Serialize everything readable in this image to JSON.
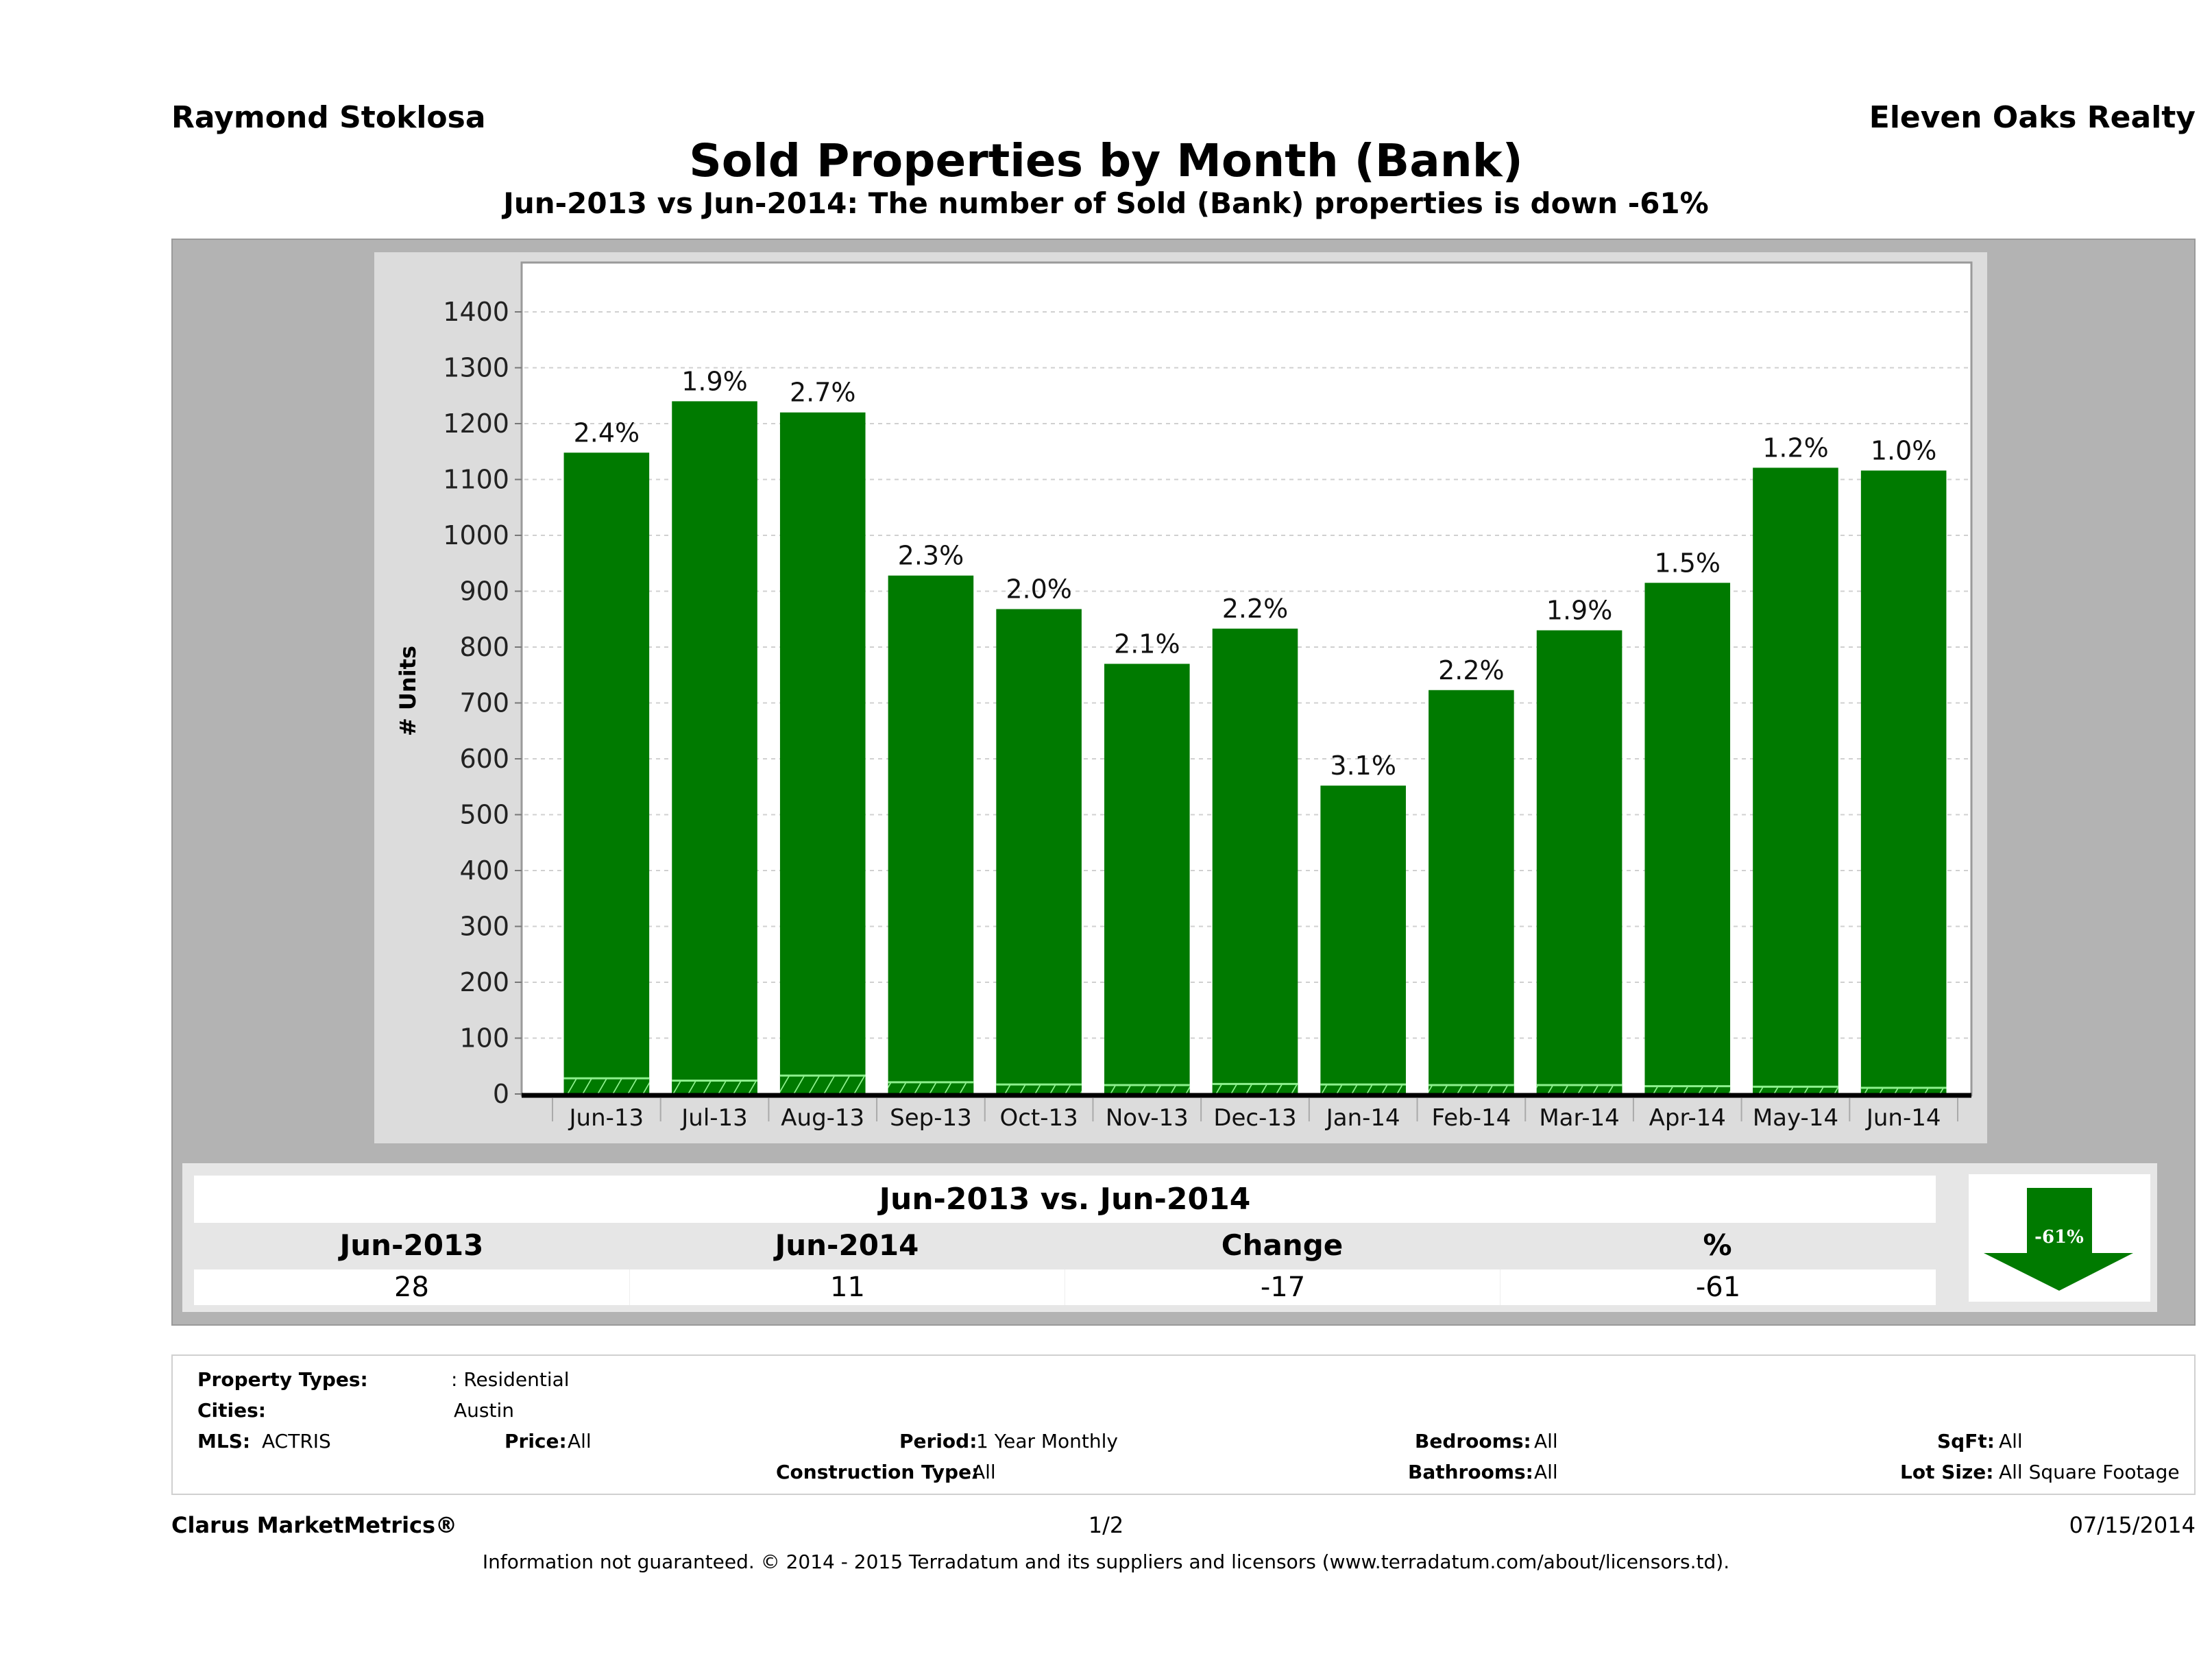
{
  "header": {
    "agent_name": "Raymond Stoklosa",
    "company_name": "Eleven Oaks Realty",
    "title": "Sold Properties by Month (Bank)",
    "subtitle": "Jun-2013 vs Jun-2014: The number of Sold (Bank)  properties is down -61%"
  },
  "colors": {
    "bar_fill": "#007a00",
    "hatch_line": "#8ef08e",
    "frame_gray": "#b3b3b3",
    "panel_gray": "#dcdcdc"
  },
  "chart_data": {
    "type": "bar",
    "title": "Sold Properties by Month (Bank)",
    "xlabel": "",
    "ylabel": "# Units",
    "ylim": [
      0,
      1400
    ],
    "yticks": [
      0,
      100,
      200,
      300,
      400,
      500,
      600,
      700,
      800,
      900,
      1000,
      1100,
      1200,
      1300,
      1400
    ],
    "grid": true,
    "stacked": true,
    "categories": [
      "Jun-13",
      "Jul-13",
      "Aug-13",
      "Sep-13",
      "Oct-13",
      "Nov-13",
      "Dec-13",
      "Jan-14",
      "Feb-14",
      "Mar-14",
      "Apr-14",
      "May-14",
      "Jun-14"
    ],
    "series": [
      {
        "name": "Sold (Bank)",
        "pattern": "hatched",
        "values": [
          28,
          24,
          33,
          21,
          17,
          16,
          18,
          17,
          16,
          16,
          14,
          13,
          11
        ]
      },
      {
        "name": "Total Sold",
        "pattern": "solid",
        "values": [
          1148,
          1240,
          1220,
          928,
          868,
          770,
          833,
          552,
          723,
          830,
          915,
          1121,
          1116
        ]
      }
    ],
    "data_labels": [
      "2.4%",
      "1.9%",
      "2.7%",
      "2.3%",
      "2.0%",
      "2.1%",
      "2.2%",
      "3.1%",
      "2.2%",
      "1.9%",
      "1.5%",
      "1.2%",
      "1.0%"
    ]
  },
  "summary": {
    "title": "Jun-2013 vs. Jun-2014",
    "headers": [
      "Jun-2013",
      "Jun-2014",
      "Change",
      "%"
    ],
    "values": [
      "28",
      "11",
      "-17",
      "-61"
    ],
    "arrow_label": "-61%",
    "arrow_icon": "down-arrow-icon"
  },
  "filters": {
    "property_types_label": "Property Types:",
    "property_types_value": ": Residential",
    "cities_label": "Cities:",
    "cities_value": "Austin",
    "mls_label": "MLS:",
    "mls_value": "ACTRIS",
    "price_label": "Price:",
    "price_value": "All",
    "period_label": "Period:",
    "period_value": "1 Year Monthly",
    "construction_label": "Construction Type:",
    "construction_value": "All",
    "bedrooms_label": "Bedrooms:",
    "bedrooms_value": "All",
    "bathrooms_label": "Bathrooms:",
    "bathrooms_value": "All",
    "sqft_label": "SqFt:",
    "sqft_value": "All",
    "lotsize_label": "Lot Size:",
    "lotsize_value": "All Square Footage"
  },
  "footer": {
    "brand": "Clarus MarketMetrics®",
    "page": "1/2",
    "date": "07/15/2014",
    "disclaimer": "Information not guaranteed. © 2014 - 2015 Terradatum and its suppliers and licensors (www.terradatum.com/about/licensors.td)."
  }
}
